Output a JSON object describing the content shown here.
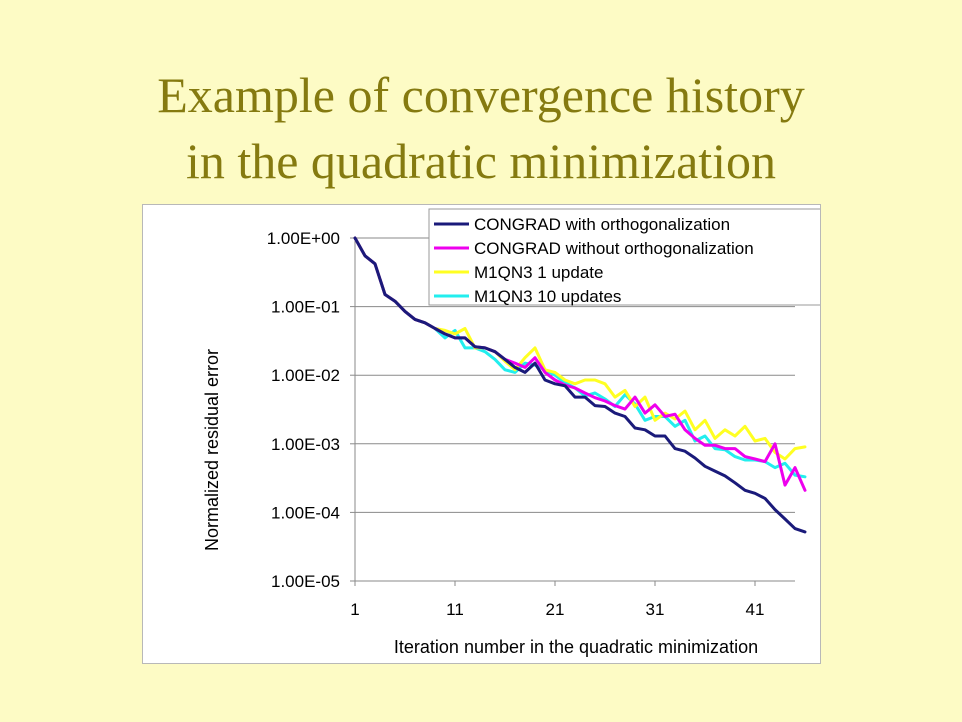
{
  "slide": {
    "title_line1": "Example of convergence history",
    "title_line2": "in the quadratic minimization"
  },
  "chart_data": {
    "type": "line",
    "title": "",
    "xlabel": "Iteration number in the quadratic minimization",
    "ylabel": "Normalized residual error",
    "y_scale": "log",
    "ylim": [
      1e-05,
      1
    ],
    "xlim": [
      1,
      45
    ],
    "x_ticks": [
      1,
      11,
      21,
      31,
      41
    ],
    "x_tick_labels": [
      "1",
      "11",
      "21",
      "31",
      "41"
    ],
    "y_ticks": [
      1,
      0.1,
      0.01,
      0.001,
      0.0001,
      1e-05
    ],
    "y_tick_labels": [
      "1.00E+00",
      "1.00E-01",
      "1.00E-02",
      "1.00E-03",
      "1.00E-04",
      "1.00E-05"
    ],
    "grid": "horizontal",
    "legend_position": "top-right",
    "series": [
      {
        "name": "CONGRAD with orthogonalization",
        "color": "#1a1a7a",
        "values": [
          1,
          0.55,
          0.42,
          0.15,
          0.12,
          0.085,
          0.065,
          0.058,
          0.048,
          0.04,
          0.035,
          0.035,
          0.026,
          0.025,
          0.022,
          0.017,
          0.013,
          0.011,
          0.015,
          0.0085,
          0.0075,
          0.007,
          0.0048,
          0.0048,
          0.0036,
          0.0035,
          0.0028,
          0.0025,
          0.0017,
          0.0016,
          0.0013,
          0.0013,
          0.00085,
          0.00078,
          0.00062,
          0.00047,
          0.0004,
          0.00034,
          0.00027,
          0.00021,
          0.00019,
          0.00016,
          0.00011,
          8e-05,
          5.8e-05,
          5.2e-05
        ]
      },
      {
        "name": "CONGRAD without orthogonalization",
        "color": "#ee00ee",
        "values": [
          1,
          0.55,
          0.42,
          0.15,
          0.12,
          0.085,
          0.065,
          0.058,
          0.048,
          0.04,
          0.035,
          0.035,
          0.026,
          0.025,
          0.022,
          0.017,
          0.015,
          0.013,
          0.018,
          0.011,
          0.0085,
          0.0072,
          0.0065,
          0.0055,
          0.0047,
          0.0042,
          0.0036,
          0.0032,
          0.0048,
          0.0028,
          0.0037,
          0.0025,
          0.0027,
          0.0016,
          0.0012,
          0.00095,
          0.00095,
          0.00085,
          0.00085,
          0.00065,
          0.0006,
          0.00055,
          0.001,
          0.00025,
          0.00045,
          0.00021
        ]
      },
      {
        "name": "M1QN3 1 update",
        "color": "#ffff22",
        "values": [
          1,
          0.55,
          0.42,
          0.15,
          0.12,
          0.085,
          0.065,
          0.058,
          0.048,
          0.045,
          0.04,
          0.048,
          0.025,
          0.025,
          0.022,
          0.016,
          0.012,
          0.018,
          0.025,
          0.012,
          0.011,
          0.0085,
          0.0075,
          0.0085,
          0.0085,
          0.0075,
          0.0048,
          0.006,
          0.0035,
          0.0048,
          0.0022,
          0.0028,
          0.0023,
          0.003,
          0.0016,
          0.0022,
          0.0012,
          0.0016,
          0.0013,
          0.0018,
          0.0011,
          0.0012,
          0.00075,
          0.0006,
          0.00085,
          0.0009
        ]
      },
      {
        "name": "M1QN3 10 updates",
        "color": "#22eeee",
        "values": [
          1,
          0.55,
          0.42,
          0.15,
          0.12,
          0.085,
          0.065,
          0.058,
          0.048,
          0.035,
          0.045,
          0.025,
          0.025,
          0.022,
          0.017,
          0.012,
          0.011,
          0.015,
          0.014,
          0.012,
          0.01,
          0.0078,
          0.0065,
          0.005,
          0.0055,
          0.0045,
          0.0035,
          0.0052,
          0.0038,
          0.0022,
          0.0025,
          0.0025,
          0.0018,
          0.0022,
          0.0011,
          0.0013,
          0.00085,
          0.00082,
          0.00065,
          0.00058,
          0.00058,
          0.00055,
          0.00045,
          0.00052,
          0.00035,
          0.00033
        ]
      }
    ]
  }
}
